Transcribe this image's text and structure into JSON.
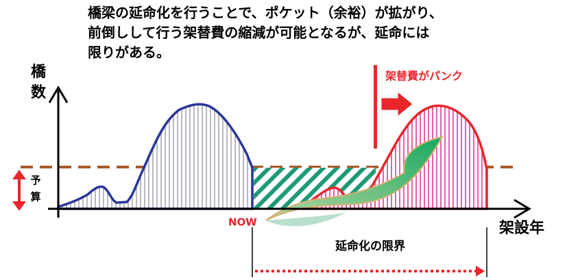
{
  "title": [
    "橋梁の延命化を行うことで、ポケット（余裕）が拡がり、",
    "前倒しして行う架替費の縮減が可能となるが、延命には",
    "限りがある。"
  ],
  "y_axis_label": [
    "橋",
    "数"
  ],
  "budget_label": [
    "予",
    "算"
  ],
  "burst_label": "架替費がパンク",
  "now_label": "NOW",
  "x_axis_label": "架設年",
  "limit_label": "延命化の限界"
}
